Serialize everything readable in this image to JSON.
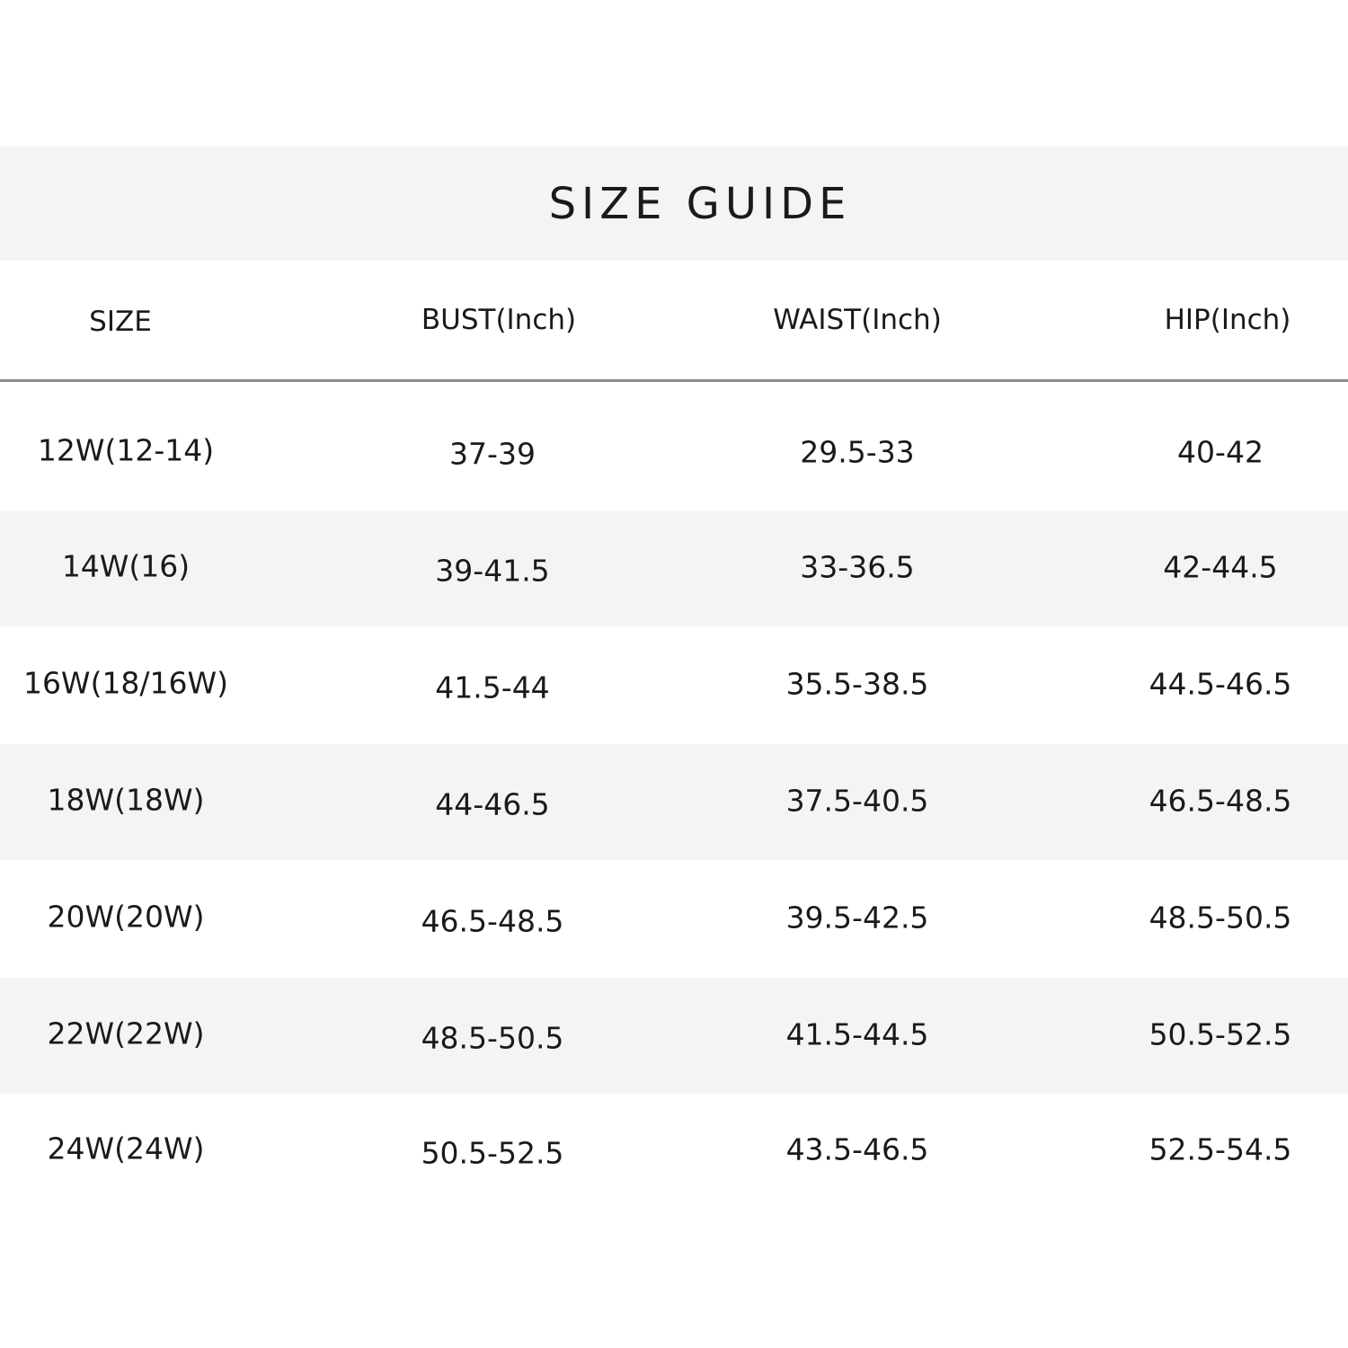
{
  "title": "SIZE GUIDE",
  "columns": [
    "SIZE",
    "BUST(Inch)",
    "WAIST(Inch)",
    "HIP(Inch)"
  ],
  "rows": [
    [
      "12W(12-14)",
      "37-39",
      "29.5-33",
      "40-42"
    ],
    [
      "14W(16)",
      "39-41.5",
      "33-36.5",
      "42-44.5"
    ],
    [
      "16W(18/16W)",
      "41.5-44",
      "35.5-38.5",
      "44.5-46.5"
    ],
    [
      "18W(18W)",
      "44-46.5",
      "37.5-40.5",
      "46.5-48.5"
    ],
    [
      "20W(20W)",
      "46.5-48.5",
      "39.5-42.5",
      "48.5-50.5"
    ],
    [
      "22W(22W)",
      "48.5-50.5",
      "41.5-44.5",
      "50.5-52.5"
    ],
    [
      "24W(24W)",
      "50.5-52.5",
      "43.5-46.5",
      "52.5-54.5"
    ]
  ],
  "colors": {
    "band": "#f4f4f4",
    "divider": "#8a8a8a",
    "text": "#1a1a1a"
  }
}
